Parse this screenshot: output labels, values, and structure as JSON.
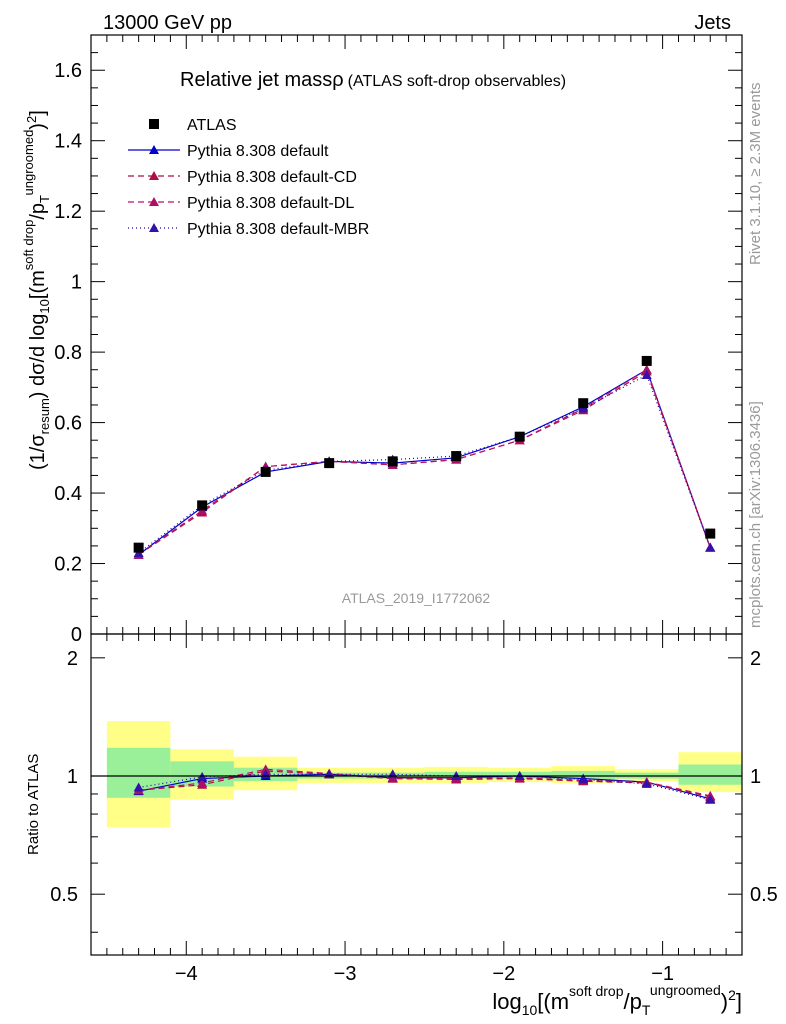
{
  "header": {
    "left": "13000 GeV pp",
    "right": "Jets"
  },
  "side_labels": {
    "rivet": "Rivet 3.1.10, ≥ 2.3M events",
    "mcplots": "mcplots.cern.ch [arXiv:1306.3436]"
  },
  "chart_data": {
    "type": "line",
    "title": "Relative jet massρ",
    "subtitle": "(ATLAS soft-drop observables)",
    "analysis_id": "ATLAS_2019_I1772062",
    "xlabel": {
      "main": "log",
      "sub10": "10",
      "bracket_open": "[(m",
      "sup1": "soft drop",
      "slash": "/p",
      "sub_T": "T",
      "sup2": "ungroomed",
      "close": ")",
      "sq": "2",
      "bracket_close": "]"
    },
    "ylabel_main": {
      "p1": "(1/σ",
      "sub_resum": "resum",
      "p2": ") dσ/d log",
      "sub10": "10",
      "p3": "[(m",
      "sup1": "soft drop",
      "p4": "/p",
      "sub_T": "T",
      "sup2": "ungroomed",
      "p5": ")",
      "sq": "2",
      "p6": "]"
    },
    "ylabel_ratio": "Ratio to ATLAS",
    "xlim": [
      -4.6,
      -0.5
    ],
    "ylim_main": [
      0,
      1.7
    ],
    "ylim_ratio": [
      0.35,
      2.3
    ],
    "x_ticks": [
      {
        "v": -4,
        "label": "−4"
      },
      {
        "v": -3,
        "label": "−3"
      },
      {
        "v": -2,
        "label": "−2"
      },
      {
        "v": -1,
        "label": "−1"
      }
    ],
    "y_ticks_main": [
      {
        "v": 0,
        "label": "0"
      },
      {
        "v": 0.2,
        "label": "0.2"
      },
      {
        "v": 0.4,
        "label": "0.4"
      },
      {
        "v": 0.6,
        "label": "0.6"
      },
      {
        "v": 0.8,
        "label": "0.8"
      },
      {
        "v": 1.0,
        "label": "1"
      },
      {
        "v": 1.2,
        "label": "1.2"
      },
      {
        "v": 1.4,
        "label": "1.4"
      },
      {
        "v": 1.6,
        "label": "1.6"
      }
    ],
    "y_ticks_ratio": [
      {
        "v": 0.5,
        "label": "0.5"
      },
      {
        "v": 1,
        "label": "1"
      },
      {
        "v": 2,
        "label": "2"
      }
    ],
    "x": [
      -4.3,
      -3.9,
      -3.5,
      -3.1,
      -2.7,
      -2.3,
      -1.9,
      -1.5,
      -1.1,
      -0.7
    ],
    "bins": [
      [
        -4.5,
        -4.1
      ],
      [
        -4.1,
        -3.7
      ],
      [
        -3.7,
        -3.3
      ],
      [
        -3.3,
        -2.9
      ],
      [
        -2.9,
        -2.5
      ],
      [
        -2.5,
        -2.1
      ],
      [
        -2.1,
        -1.7
      ],
      [
        -1.7,
        -1.3
      ],
      [
        -1.3,
        -0.9
      ],
      [
        -0.9,
        -0.5
      ]
    ],
    "data": {
      "name": "ATLAS",
      "values": [
        0.245,
        0.365,
        0.46,
        0.485,
        0.49,
        0.505,
        0.56,
        0.655,
        0.775,
        0.285
      ],
      "band_inner": [
        [
          0.88,
          1.18
        ],
        [
          0.94,
          1.09
        ],
        [
          0.97,
          1.05
        ],
        [
          0.985,
          1.02
        ],
        [
          0.985,
          1.02
        ],
        [
          0.985,
          1.025
        ],
        [
          0.985,
          1.025
        ],
        [
          0.98,
          1.03
        ],
        [
          0.985,
          1.02
        ],
        [
          0.95,
          1.07
        ]
      ],
      "band_outer": [
        [
          0.74,
          1.38
        ],
        [
          0.87,
          1.17
        ],
        [
          0.92,
          1.12
        ],
        [
          0.96,
          1.05
        ],
        [
          0.96,
          1.05
        ],
        [
          0.96,
          1.055
        ],
        [
          0.965,
          1.05
        ],
        [
          0.96,
          1.06
        ],
        [
          0.97,
          1.04
        ],
        [
          0.91,
          1.15
        ]
      ]
    },
    "series": [
      {
        "name": "Pythia 8.308 default",
        "color": "#0000cc",
        "dash": "",
        "marker_color": "#0000cc",
        "values": [
          0.225,
          0.36,
          0.46,
          0.49,
          0.485,
          0.5,
          0.56,
          0.645,
          0.75,
          0.245
        ],
        "ratio": [
          0.915,
          0.985,
          1.0,
          1.01,
          0.99,
          0.99,
          1.0,
          0.985,
          0.965,
          0.875
        ]
      },
      {
        "name": "Pythia 8.308 default-CD",
        "color": "#aa1144",
        "dash": "6,4",
        "marker_color": "#aa1144",
        "values": [
          0.225,
          0.345,
          0.475,
          0.49,
          0.48,
          0.495,
          0.55,
          0.635,
          0.745,
          0.245
        ],
        "ratio": [
          0.92,
          0.95,
          1.03,
          1.01,
          0.985,
          0.98,
          0.985,
          0.97,
          0.96,
          0.885
        ]
      },
      {
        "name": "Pythia 8.308 default-DL",
        "color": "#bb1166",
        "dash": "6,4",
        "marker_color": "#aa1166",
        "values": [
          0.225,
          0.35,
          0.475,
          0.49,
          0.48,
          0.495,
          0.55,
          0.64,
          0.75,
          0.245
        ],
        "ratio": [
          0.92,
          0.96,
          1.04,
          1.015,
          0.985,
          0.985,
          0.99,
          0.975,
          0.965,
          0.89
        ]
      },
      {
        "name": "Pythia 8.308 default-MBR",
        "color": "#2200aa",
        "dash": "1,3",
        "marker_color": "#3311aa",
        "values": [
          0.23,
          0.365,
          0.465,
          0.49,
          0.495,
          0.505,
          0.56,
          0.64,
          0.735,
          0.245
        ],
        "ratio": [
          0.935,
          0.995,
          1.01,
          1.01,
          1.01,
          1.0,
          1.0,
          0.98,
          0.955,
          0.87
        ]
      }
    ]
  }
}
